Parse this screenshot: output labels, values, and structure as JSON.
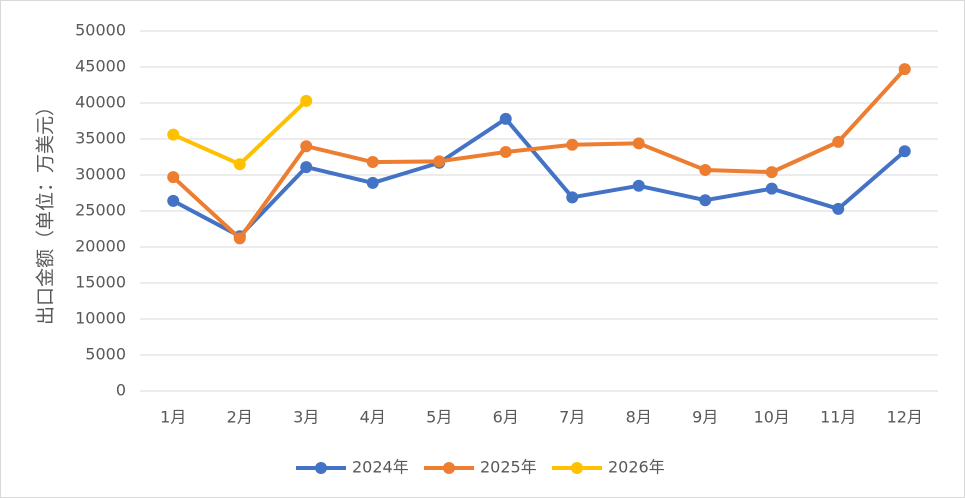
{
  "chart_data": {
    "type": "line",
    "y_label": "出口金额（单位：万美元）",
    "categories": [
      "1月",
      "2月",
      "3月",
      "4月",
      "5月",
      "6月",
      "7月",
      "8月",
      "9月",
      "10月",
      "11月",
      "12月"
    ],
    "series": [
      {
        "name": "2024年",
        "color": "#4472c4",
        "values": [
          26400,
          21500,
          31100,
          28900,
          31700,
          37800,
          26900,
          28500,
          26500,
          28100,
          25300,
          33300
        ]
      },
      {
        "name": "2025年",
        "color": "#ed7d31",
        "values": [
          29700,
          21200,
          34000,
          31800,
          31900,
          33200,
          34200,
          34400,
          30700,
          30400,
          34600,
          44700
        ]
      },
      {
        "name": "2026年",
        "color": "#ffc000",
        "values": [
          35600,
          31500,
          40300,
          null,
          null,
          null,
          null,
          null,
          null,
          null,
          null,
          null
        ]
      }
    ],
    "ylim": [
      0,
      50000
    ],
    "yticks": [
      0,
      5000,
      10000,
      15000,
      20000,
      25000,
      30000,
      35000,
      40000,
      45000,
      50000
    ],
    "grid": true,
    "legend": "bottom"
  }
}
